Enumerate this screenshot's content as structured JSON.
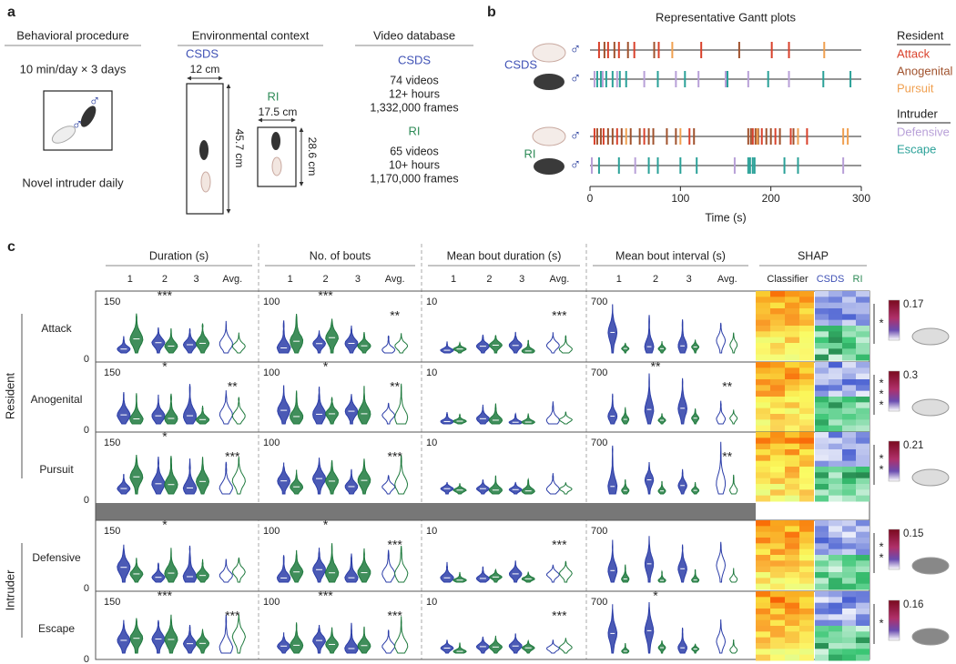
{
  "panel_a": {
    "label": "a",
    "symbol": "♂",
    "procedure": {
      "title": "Behavioral procedure",
      "schedule": "10 min/day × 3 days",
      "note": "Novel intruder daily"
    },
    "context": {
      "title": "Environmental context",
      "csds": {
        "name": "CSDS",
        "width": "12 cm",
        "length": "45.7 cm"
      },
      "ri": {
        "name": "RI",
        "width": "17.5 cm",
        "length": "28.6 cm"
      }
    },
    "database": {
      "title": "Video database",
      "groups": [
        {
          "name": "CSDS",
          "lines": [
            "74 videos",
            "12+ hours",
            "1,332,000 frames"
          ]
        },
        {
          "name": "RI",
          "lines": [
            "65 videos",
            "10+ hours",
            "1,170,000 frames"
          ]
        }
      ]
    }
  },
  "panel_b": {
    "label": "b",
    "symbol": "♂",
    "chart_data": {
      "type": "gantt",
      "title": "Representative Gantt plots",
      "x_label": "Time (s)",
      "xlim": [
        0,
        300
      ],
      "xticks": [
        0,
        100,
        200,
        300
      ],
      "legend": [
        {
          "title": "Resident",
          "items": [
            {
              "name": "Attack",
              "color": "#d9412b"
            },
            {
              "name": "Anogenital",
              "color": "#a0522d"
            },
            {
              "name": "Pursuit",
              "color": "#f0a050"
            }
          ]
        },
        {
          "title": "Intruder",
          "items": [
            {
              "name": "Defensive",
              "color": "#b8a0d8"
            },
            {
              "name": "Escape",
              "color": "#2aa198"
            }
          ]
        }
      ],
      "groups": [
        {
          "name": "CSDS",
          "color": "#3f51b5",
          "tracks": [
            [
              [
                10,
                20,
                32,
                49,
                76,
                123,
                201,
                220
              ],
              [
                16,
                27,
                42,
                71,
                165
              ],
              [
                91,
                259
              ]
            ],
            [
              [
                5,
                14,
                30,
                60,
                95,
                120,
                150,
                175,
                220
              ],
              [
                8,
                12,
                18,
                25,
                33,
                40,
                75,
                105,
                152,
                197,
                258,
                288
              ]
            ]
          ]
        },
        {
          "name": "RI",
          "color": "#2e8b57",
          "tracks": [
            [
              [
                5,
                15,
                30,
                60,
                110,
                180,
                190,
                205,
                222,
                240
              ],
              [
                8,
                12,
                20,
                25,
                35,
                45,
                55,
                65,
                70,
                85,
                95,
                115,
                175,
                178,
                183,
                186,
                195,
                200,
                210,
                225
              ],
              [
                40,
                100,
                185,
                230,
                280,
                285
              ]
            ],
            [
              [
                2,
                50,
                160,
                280
              ],
              [
                10,
                32,
                65,
                75,
                100,
                118,
                175,
                177,
                180,
                182,
                215,
                230
              ]
            ]
          ]
        }
      ]
    }
  },
  "panel_c": {
    "label": "c",
    "axis_min": 0,
    "days": [
      "1",
      "2",
      "3",
      "Avg."
    ],
    "metrics": [
      {
        "title": "Duration (s)",
        "top": 150
      },
      {
        "title": "No. of bouts",
        "top": 100
      },
      {
        "title": "Mean bout duration (s)",
        "top": 10
      },
      {
        "title": "Mean bout interval (s)",
        "top": 700
      }
    ],
    "shap": {
      "title": "SHAP",
      "columns": [
        {
          "name": "Classifier",
          "color": "#222"
        },
        {
          "name": "CSDS",
          "color": "#3f51b5"
        },
        {
          "name": "RI",
          "color": "#2e8b57"
        }
      ]
    },
    "groups": [
      {
        "name": "Resident",
        "rows": [
          {
            "name": "Attack",
            "shap_max": 0.17,
            "shap_stars": [
              "*"
            ],
            "stars": [
              {
                "metric": 0,
                "day": 1,
                "text": "***"
              },
              {
                "metric": 1,
                "day": 1,
                "text": "***"
              },
              {
                "metric": 1,
                "day": 3,
                "text": "**"
              },
              {
                "metric": 2,
                "day": 3,
                "text": "***"
              }
            ]
          },
          {
            "name": "Anogenital",
            "shap_max": 0.3,
            "shap_stars": [
              "*",
              "*",
              "*"
            ],
            "stars": [
              {
                "metric": 0,
                "day": 1,
                "text": "*"
              },
              {
                "metric": 0,
                "day": 3,
                "text": "**"
              },
              {
                "metric": 1,
                "day": 1,
                "text": "*"
              },
              {
                "metric": 1,
                "day": 3,
                "text": "**"
              },
              {
                "metric": 3,
                "day": 1,
                "text": "**"
              },
              {
                "metric": 3,
                "day": 3,
                "text": "**"
              }
            ]
          },
          {
            "name": "Pursuit",
            "shap_max": 0.21,
            "shap_stars": [
              "*",
              "*"
            ],
            "stars": [
              {
                "metric": 0,
                "day": 1,
                "text": "*"
              },
              {
                "metric": 0,
                "day": 3,
                "text": "***"
              },
              {
                "metric": 1,
                "day": 3,
                "text": "***"
              },
              {
                "metric": 3,
                "day": 3,
                "text": "**"
              }
            ]
          }
        ]
      },
      {
        "name": "Intruder",
        "rows": [
          {
            "name": "Defensive",
            "shap_max": 0.15,
            "shap_stars": [
              "*",
              "*"
            ],
            "stars": [
              {
                "metric": 0,
                "day": 1,
                "text": "*"
              },
              {
                "metric": 1,
                "day": 1,
                "text": "*"
              },
              {
                "metric": 1,
                "day": 3,
                "text": "***"
              },
              {
                "metric": 2,
                "day": 3,
                "text": "***"
              }
            ]
          },
          {
            "name": "Escape",
            "shap_max": 0.16,
            "shap_stars": [
              "*"
            ],
            "stars": [
              {
                "metric": 0,
                "day": 1,
                "text": "***"
              },
              {
                "metric": 0,
                "day": 3,
                "text": "***"
              },
              {
                "metric": 1,
                "day": 1,
                "text": "***"
              },
              {
                "metric": 1,
                "day": 3,
                "text": "***"
              },
              {
                "metric": 2,
                "day": 3,
                "text": "***"
              },
              {
                "metric": 3,
                "day": 1,
                "text": "*"
              }
            ]
          }
        ]
      }
    ]
  }
}
